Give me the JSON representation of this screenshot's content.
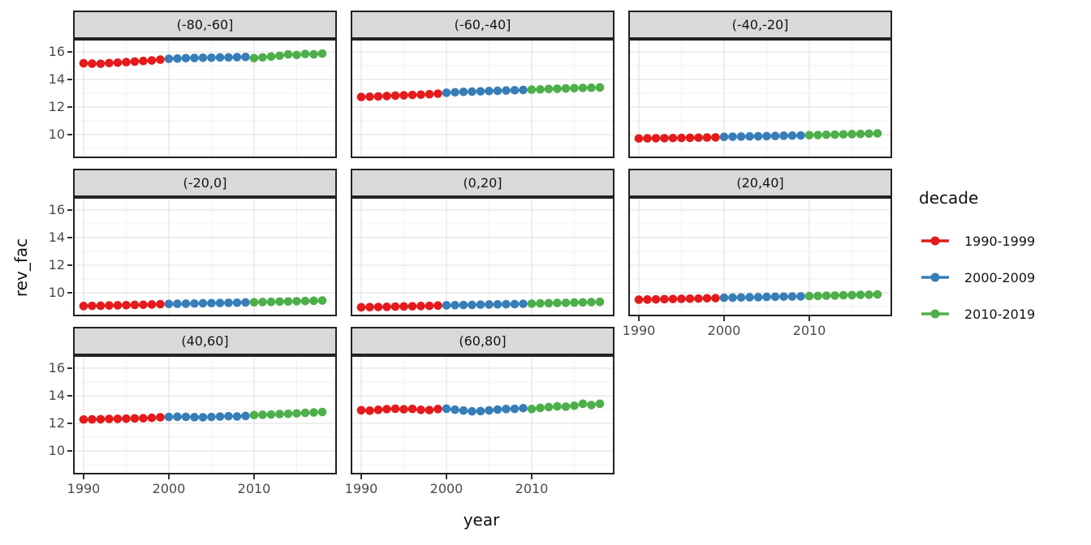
{
  "chart_data": {
    "type": "scatter",
    "title": "",
    "xlabel": "year",
    "ylabel": "rev_fac",
    "grid": true,
    "x_ticks": [
      1990,
      2000,
      2010
    ],
    "x_minor_ticks": [
      1995,
      2005,
      2015
    ],
    "x_range": [
      1988.8,
      2019.7
    ],
    "y_ticks": [
      10,
      12,
      14,
      16
    ],
    "y_minor_ticks": [
      9,
      11,
      13,
      15
    ],
    "y_range": [
      8.3,
      16.95
    ],
    "legend": {
      "title": "decade",
      "position": "right",
      "items": [
        {
          "label": "1990-1999",
          "color": "#E41A1C"
        },
        {
          "label": "2000-2009",
          "color": "#377EB8"
        },
        {
          "label": "2010-2019",
          "color": "#4DAF4A"
        }
      ]
    },
    "decades": [
      {
        "label": "1990-1999",
        "color": "#E41A1C",
        "years": [
          1990,
          1991,
          1992,
          1993,
          1994,
          1995,
          1996,
          1997,
          1998,
          1999
        ]
      },
      {
        "label": "2000-2009",
        "color": "#377EB8",
        "years": [
          2000,
          2001,
          2002,
          2003,
          2004,
          2005,
          2006,
          2007,
          2008,
          2009
        ]
      },
      {
        "label": "2010-2019",
        "color": "#4DAF4A",
        "years": [
          2010,
          2011,
          2012,
          2013,
          2014,
          2015,
          2016,
          2017,
          2018
        ]
      }
    ],
    "facets": [
      {
        "label": "(-80,-60]",
        "values": [
          [
            15.18,
            15.15,
            15.14,
            15.19,
            15.22,
            15.26,
            15.3,
            15.34,
            15.38,
            15.44
          ],
          [
            15.5,
            15.52,
            15.55,
            15.56,
            15.58,
            15.58,
            15.6,
            15.6,
            15.62,
            15.63
          ],
          [
            15.55,
            15.6,
            15.66,
            15.72,
            15.82,
            15.78,
            15.85,
            15.82,
            15.88
          ]
        ]
      },
      {
        "label": "(-60,-40]",
        "values": [
          [
            12.73,
            12.75,
            12.77,
            12.8,
            12.83,
            12.85,
            12.88,
            12.9,
            12.93,
            12.97
          ],
          [
            13.04,
            13.07,
            13.1,
            13.12,
            13.14,
            13.16,
            13.18,
            13.2,
            13.22,
            13.24
          ],
          [
            13.26,
            13.28,
            13.31,
            13.33,
            13.35,
            13.37,
            13.39,
            13.4,
            13.42
          ]
        ]
      },
      {
        "label": "(-40,-20]",
        "values": [
          [
            9.72,
            9.73,
            9.74,
            9.74,
            9.75,
            9.76,
            9.77,
            9.78,
            9.79,
            9.8
          ],
          [
            9.84,
            9.85,
            9.86,
            9.87,
            9.88,
            9.89,
            9.9,
            9.92,
            9.93,
            9.94
          ],
          [
            9.96,
            9.97,
            9.99,
            10.0,
            10.02,
            10.04,
            10.05,
            10.07,
            10.09
          ]
        ]
      },
      {
        "label": "(-20,0]",
        "values": [
          [
            9.04,
            9.05,
            9.06,
            9.08,
            9.09,
            9.1,
            9.12,
            9.13,
            9.15,
            9.17
          ],
          [
            9.19,
            9.2,
            9.21,
            9.22,
            9.24,
            9.25,
            9.26,
            9.27,
            9.28,
            9.3
          ],
          [
            9.31,
            9.33,
            9.34,
            9.36,
            9.37,
            9.39,
            9.4,
            9.42,
            9.44
          ]
        ]
      },
      {
        "label": "(0,20]",
        "values": [
          [
            8.95,
            8.96,
            8.97,
            8.98,
            9.0,
            9.01,
            9.02,
            9.04,
            9.05,
            9.07
          ],
          [
            9.09,
            9.1,
            9.11,
            9.12,
            9.14,
            9.15,
            9.16,
            9.17,
            9.18,
            9.2
          ],
          [
            9.21,
            9.23,
            9.24,
            9.26,
            9.27,
            9.29,
            9.3,
            9.32,
            9.34
          ]
        ]
      },
      {
        "label": "(20,40]",
        "values": [
          [
            9.5,
            9.51,
            9.52,
            9.54,
            9.55,
            9.56,
            9.57,
            9.58,
            9.6,
            9.61
          ],
          [
            9.64,
            9.65,
            9.66,
            9.67,
            9.68,
            9.7,
            9.71,
            9.72,
            9.73,
            9.74
          ],
          [
            9.76,
            9.77,
            9.79,
            9.8,
            9.82,
            9.83,
            9.85,
            9.86,
            9.88
          ]
        ]
      },
      {
        "label": "(40,60]",
        "values": [
          [
            12.28,
            12.29,
            12.3,
            12.32,
            12.33,
            12.34,
            12.36,
            12.37,
            12.4,
            12.44
          ],
          [
            12.46,
            12.48,
            12.47,
            12.45,
            12.44,
            12.46,
            12.49,
            12.52,
            12.5,
            12.54
          ],
          [
            12.6,
            12.62,
            12.64,
            12.67,
            12.69,
            12.72,
            12.76,
            12.79,
            12.82
          ]
        ]
      },
      {
        "label": "(60,80]",
        "values": [
          [
            12.95,
            12.92,
            12.98,
            13.03,
            13.06,
            13.02,
            13.05,
            12.98,
            12.96,
            13.04
          ],
          [
            13.06,
            12.99,
            12.93,
            12.87,
            12.89,
            12.94,
            13.0,
            13.04,
            13.05,
            13.1
          ],
          [
            13.04,
            13.12,
            13.18,
            13.23,
            13.21,
            13.28,
            13.42,
            13.33,
            13.42
          ]
        ]
      }
    ],
    "style": {
      "strip_background": "#D9D9D9",
      "panel_border": "#222222",
      "grid_major": "#E3E3E3",
      "grid_minor": "#F1F1F1",
      "tick_text": "#4a4a4a"
    }
  }
}
